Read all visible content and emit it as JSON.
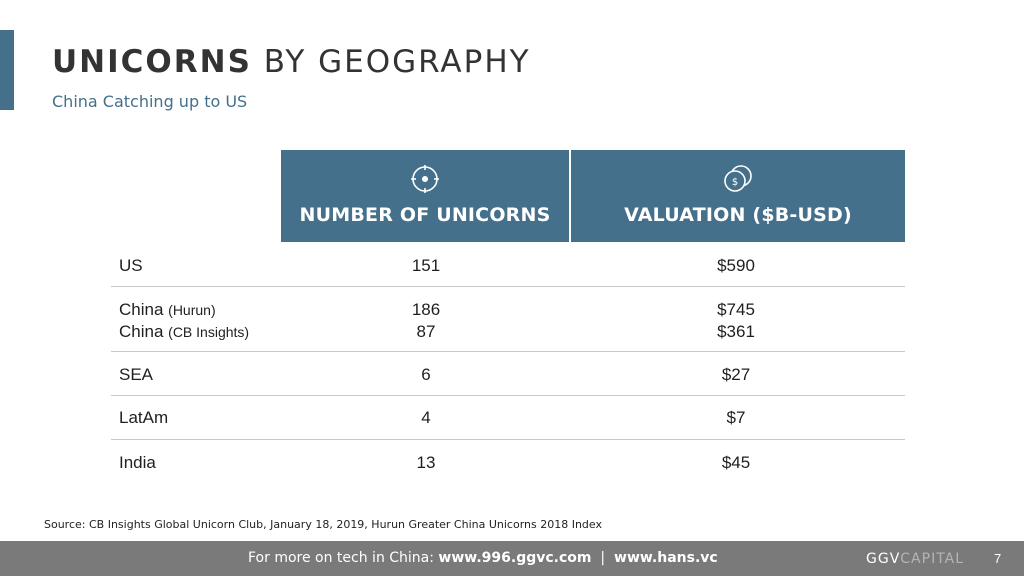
{
  "slide": {
    "title_bold": "UNICORNS",
    "title_rest": " BY GEOGRAPHY",
    "subtitle": "China Catching up to US"
  },
  "table": {
    "headers": [
      {
        "label": "NUMBER OF UNICORNS",
        "icon": "target-icon"
      },
      {
        "label": "VALUATION ($B-USD)",
        "icon": "coins-icon"
      }
    ],
    "rows": [
      {
        "region": "US",
        "count": "151",
        "valuation": "$590"
      },
      {
        "region": "China",
        "region_note": "(Hurun)",
        "count": "186",
        "valuation": "$745",
        "region2": "China",
        "region2_note": "(CB Insights)",
        "count2": "87",
        "valuation2": "$361"
      },
      {
        "region": "SEA",
        "count": "6",
        "valuation": "$27"
      },
      {
        "region": "LatAm",
        "count": "4",
        "valuation": "$7"
      },
      {
        "region": "India",
        "count": "13",
        "valuation": "$45"
      }
    ]
  },
  "source": "Source: CB Insights Global Unicorn Club, January 18, 2019, Hurun Greater China Unicorns 2018 Index",
  "footer": {
    "prefix": "For more on tech in China: ",
    "link1": "www.996.ggvc.com",
    "separator": "  |  ",
    "link2": "www.hans.vc",
    "brand_strong": "GGV",
    "brand_faded": "CAPITAL",
    "page": "7"
  },
  "colors": {
    "accent": "#44708c",
    "footer_bg": "#7a7a7a"
  }
}
